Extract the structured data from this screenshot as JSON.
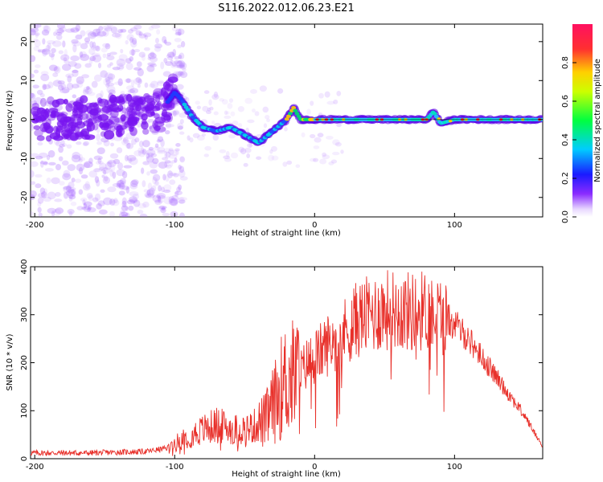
{
  "title": "S116.2022.012.06.23.E21",
  "chart_data": [
    {
      "type": "heatmap",
      "xlabel": "Height of straight line (km)",
      "ylabel": "Frequency (Hz)",
      "xlim": [
        -203,
        163
      ],
      "ylim": [
        -25,
        24.5
      ],
      "xticks": [
        -200,
        -100,
        0,
        100
      ],
      "yticks": [
        -20,
        -10,
        0,
        10,
        20
      ],
      "colorbar": {
        "label": "Normalized spectral amplitude",
        "range": [
          0,
          1
        ],
        "ticks": [
          "0.0",
          "0.2",
          "0.4",
          "0.6",
          "0.8"
        ]
      },
      "ridge": {
        "description_points": [
          [
            -200,
            0
          ],
          [
            -150,
            0.5
          ],
          [
            -110,
            2
          ],
          [
            -100,
            7
          ],
          [
            -95,
            5
          ],
          [
            -88,
            1
          ],
          [
            -80,
            -2
          ],
          [
            -70,
            -3
          ],
          [
            -60,
            -2
          ],
          [
            -50,
            -4
          ],
          [
            -40,
            -6
          ],
          [
            -30,
            -3
          ],
          [
            -20,
            0
          ],
          [
            -15,
            3
          ],
          [
            -10,
            0
          ],
          [
            0,
            0
          ],
          [
            20,
            0
          ],
          [
            40,
            0
          ],
          [
            60,
            0
          ],
          [
            80,
            0
          ],
          [
            85,
            2
          ],
          [
            90,
            -1
          ],
          [
            100,
            0
          ],
          [
            130,
            0
          ],
          [
            163,
            0
          ]
        ]
      },
      "grid": false
    },
    {
      "type": "line",
      "xlabel": "Height of straight line (km)",
      "ylabel": "SNR (10 * v/v)",
      "xlim": [
        -203,
        163
      ],
      "ylim": [
        0,
        400
      ],
      "xticks": [
        -200,
        -100,
        0,
        100
      ],
      "yticks": [
        0,
        100,
        200,
        300,
        400
      ],
      "series": [
        {
          "color": "#e8302a",
          "envelope": [
            [
              -203,
              12
            ],
            [
              -160,
              12
            ],
            [
              -120,
              15
            ],
            [
              -105,
              22
            ],
            [
              -95,
              40
            ],
            [
              -80,
              60
            ],
            [
              -70,
              70
            ],
            [
              -55,
              60
            ],
            [
              -45,
              65
            ],
            [
              -35,
              80
            ],
            [
              -28,
              120
            ],
            [
              -22,
              160
            ],
            [
              -15,
              170
            ],
            [
              -10,
              180
            ],
            [
              -5,
              200
            ],
            [
              0,
              210
            ],
            [
              10,
              240
            ],
            [
              20,
              260
            ],
            [
              30,
              290
            ],
            [
              40,
              300
            ],
            [
              50,
              310
            ],
            [
              60,
              310
            ],
            [
              70,
              305
            ],
            [
              80,
              310
            ],
            [
              90,
              300
            ],
            [
              100,
              280
            ],
            [
              110,
              250
            ],
            [
              120,
              210
            ],
            [
              130,
              170
            ],
            [
              140,
              130
            ],
            [
              150,
              90
            ],
            [
              160,
              40
            ],
            [
              163,
              25
            ]
          ]
        }
      ],
      "grid": false
    }
  ]
}
